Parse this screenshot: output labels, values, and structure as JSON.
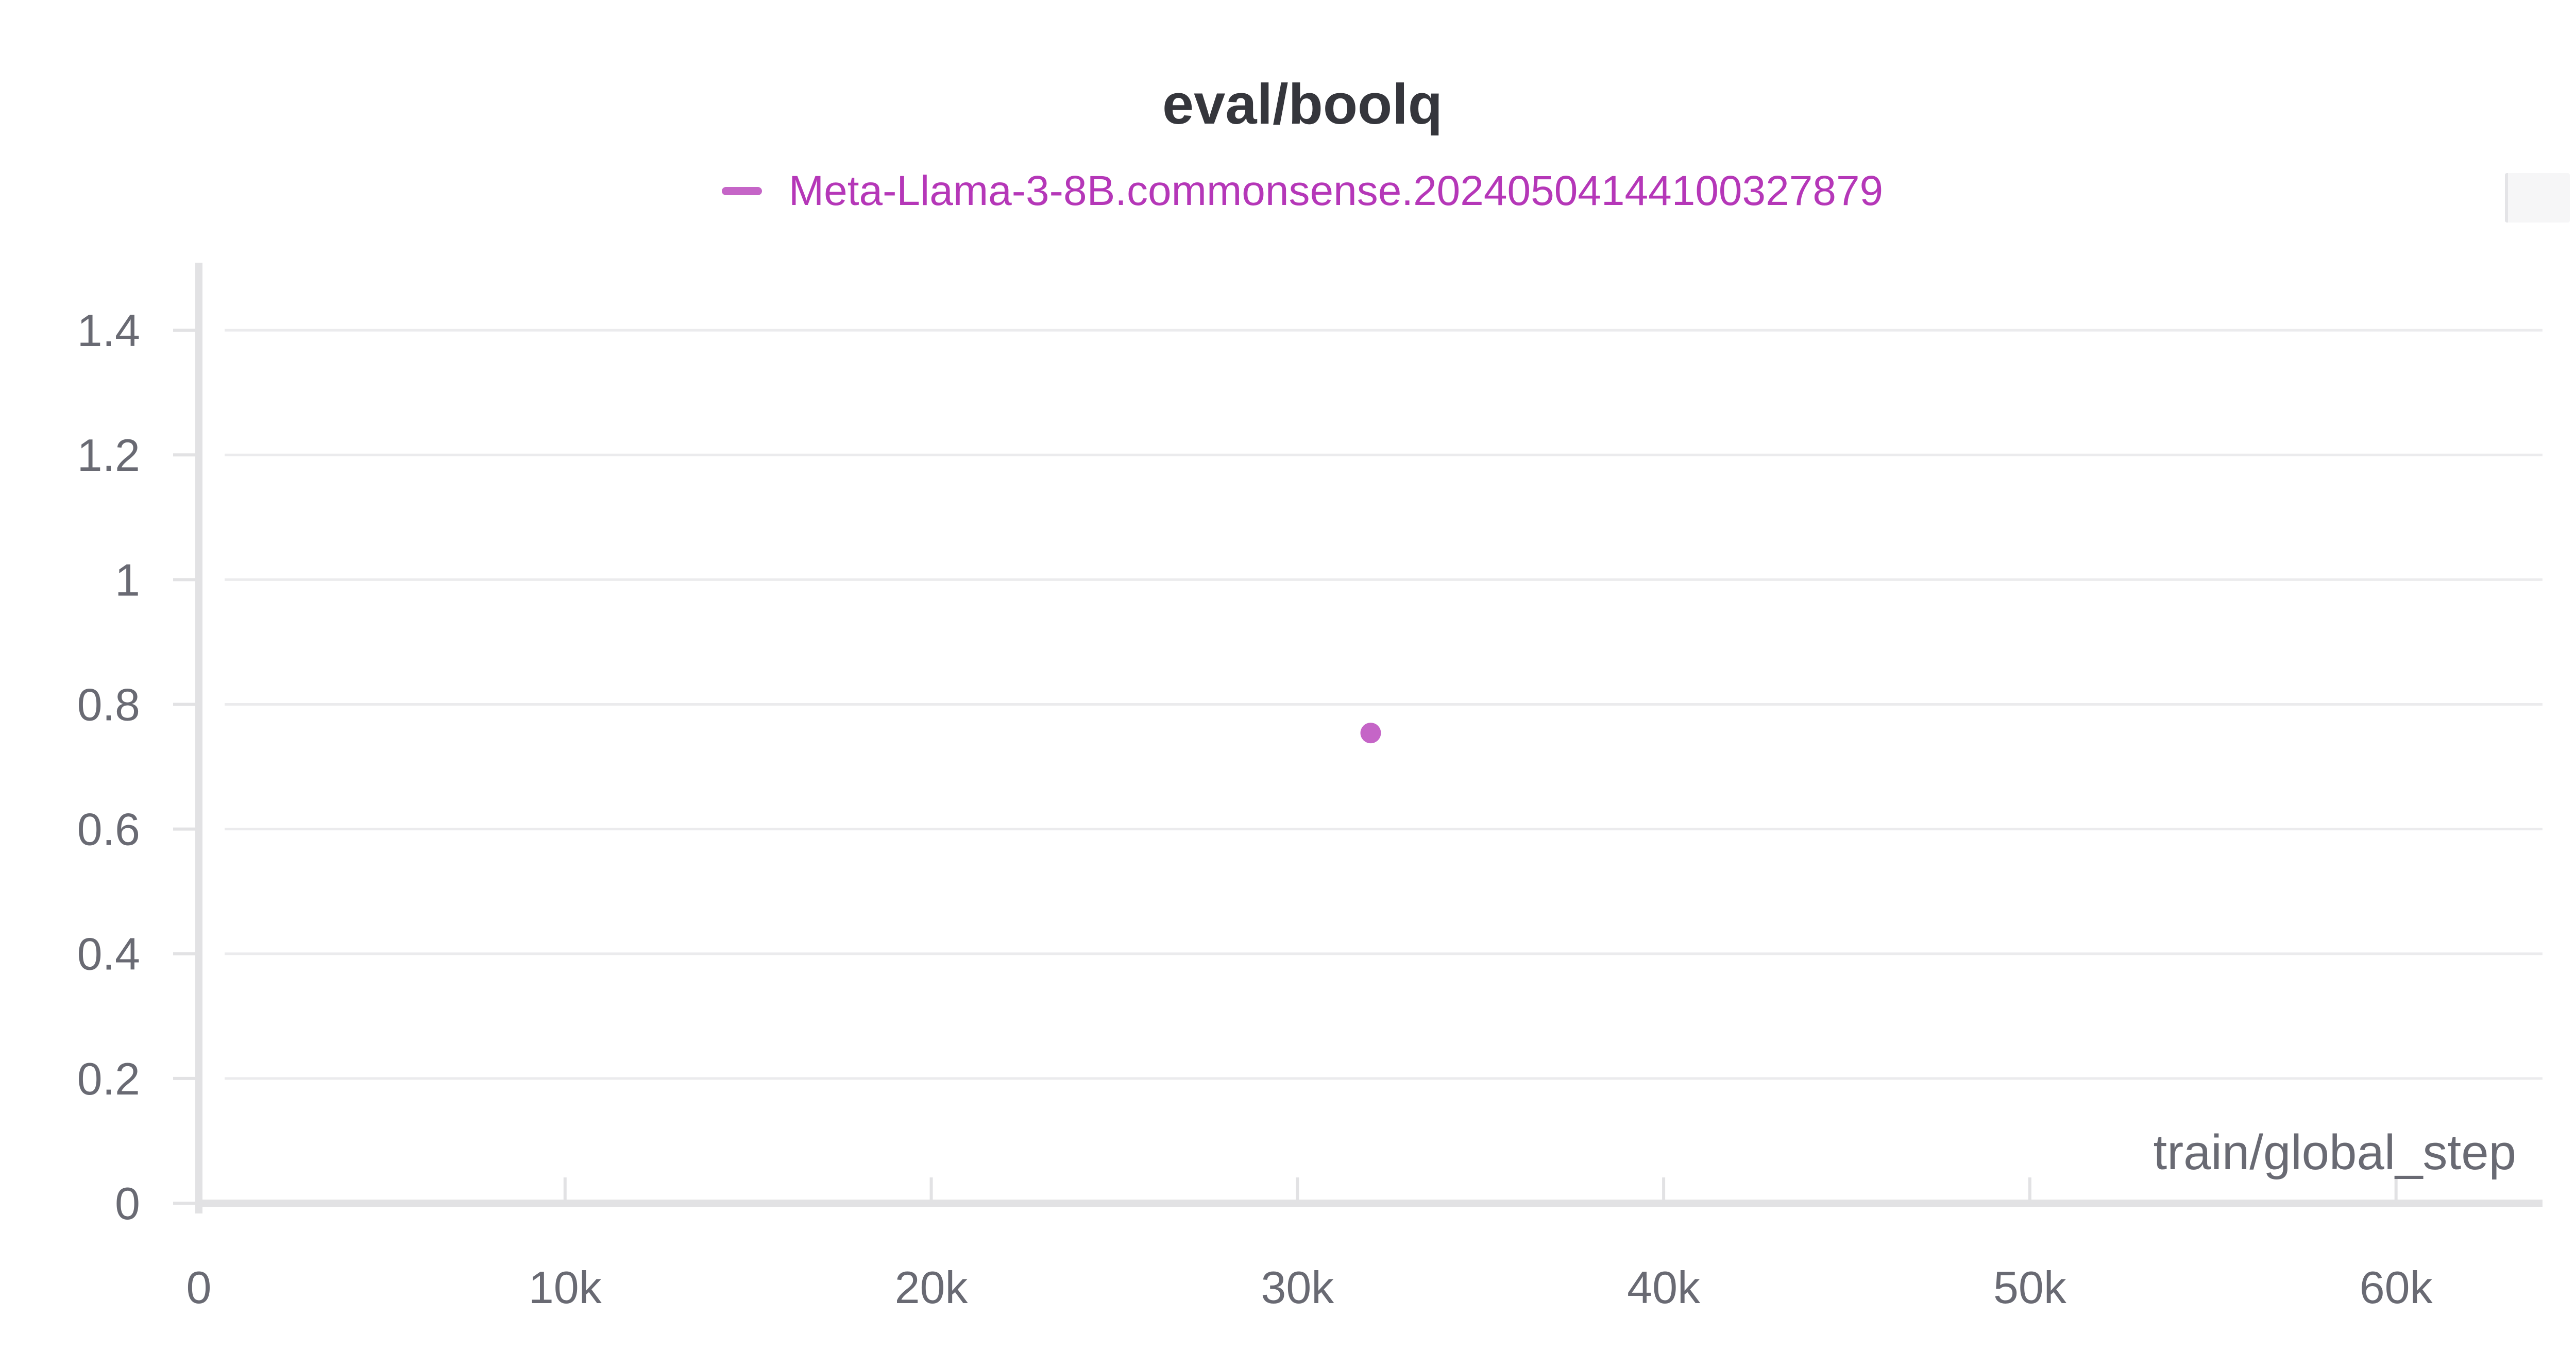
{
  "colors": {
    "series": "#c565c7",
    "legend_text": "#b537b8",
    "grid": "#ebebed",
    "axis": "#e2e2e4",
    "tick_text": "#696a73",
    "title": "#35363c"
  },
  "chart_data": {
    "type": "scatter",
    "title": "eval/boolq",
    "xlabel": "train/global_step",
    "ylabel": "",
    "xlim": [
      0,
      64000
    ],
    "ylim": [
      0,
      1.5
    ],
    "x_ticks": [
      {
        "value": 0,
        "label": "0"
      },
      {
        "value": 10000,
        "label": "10k"
      },
      {
        "value": 20000,
        "label": "20k"
      },
      {
        "value": 30000,
        "label": "30k"
      },
      {
        "value": 40000,
        "label": "40k"
      },
      {
        "value": 50000,
        "label": "50k"
      },
      {
        "value": 60000,
        "label": "60k"
      }
    ],
    "y_ticks": [
      {
        "value": 0,
        "label": "0"
      },
      {
        "value": 0.2,
        "label": "0.2"
      },
      {
        "value": 0.4,
        "label": "0.4"
      },
      {
        "value": 0.6,
        "label": "0.6"
      },
      {
        "value": 0.8,
        "label": "0.8"
      },
      {
        "value": 1,
        "label": "1"
      },
      {
        "value": 1.2,
        "label": "1.2"
      },
      {
        "value": 1.4,
        "label": "1.4"
      }
    ],
    "grid": true,
    "legend_position": "top-center",
    "series": [
      {
        "name": "Meta-Llama-3-8B.commonsense.20240504144100327879",
        "points": [
          {
            "x": 32000,
            "y": 0.754
          }
        ]
      }
    ]
  }
}
